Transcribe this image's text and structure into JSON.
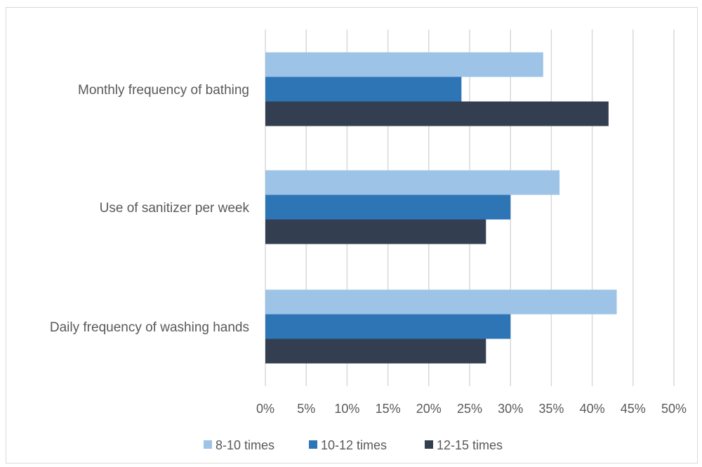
{
  "chart_data": {
    "type": "bar",
    "orientation": "horizontal",
    "categories": [
      "Monthly frequency of bathing",
      "Use of sanitizer per week",
      "Daily frequency of washing hands"
    ],
    "series": [
      {
        "name": "8-10 times",
        "color": "#9dc3e6",
        "values": [
          34,
          36,
          43
        ]
      },
      {
        "name": "10-12 times",
        "color": "#2e75b6",
        "values": [
          24,
          30,
          30
        ]
      },
      {
        "name": "12-15 times",
        "color": "#333f50",
        "values": [
          42,
          27,
          27
        ]
      }
    ],
    "xlim": [
      0,
      50
    ],
    "x_ticks": [
      0,
      5,
      10,
      15,
      20,
      25,
      30,
      35,
      40,
      45,
      50
    ],
    "x_tick_labels": [
      "0%",
      "5%",
      "10%",
      "15%",
      "20%",
      "25%",
      "30%",
      "35%",
      "40%",
      "45%",
      "50%"
    ],
    "title": "",
    "xlabel": "",
    "ylabel": "",
    "grid": true,
    "legend_position": "bottom"
  }
}
